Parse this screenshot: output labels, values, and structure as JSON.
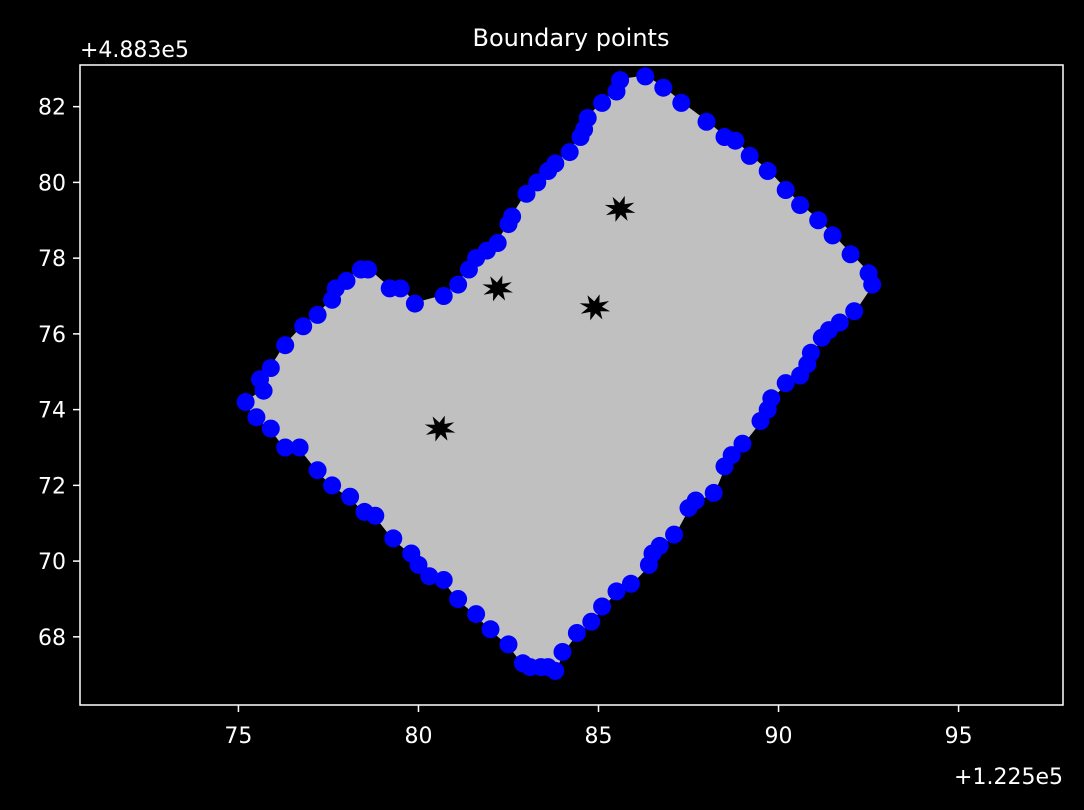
{
  "chart_data": {
    "type": "scatter",
    "title": "Boundary points",
    "xlabel": "",
    "ylabel": "",
    "x_offset_label": "+1.225e5",
    "y_offset_label": "+4.883e5",
    "xlim": [
      70.6,
      97.9
    ],
    "ylim": [
      66.2,
      83.1
    ],
    "xticks": [
      75,
      80,
      85,
      90,
      95
    ],
    "xtick_labels": [
      "75",
      "80",
      "85",
      "90",
      "95"
    ],
    "yticks": [
      68,
      70,
      72,
      74,
      76,
      78,
      80,
      82
    ],
    "ytick_labels": [
      "68",
      "70",
      "72",
      "74",
      "76",
      "78",
      "80",
      "82"
    ],
    "grid": false,
    "colors": {
      "background": "#000000",
      "fill": "#c0c0c0",
      "points": "#0000ff",
      "axes": "#ffffff"
    },
    "holes": [
      {
        "x": 85.6,
        "y": 79.3
      },
      {
        "x": 82.2,
        "y": 77.2
      },
      {
        "x": 84.9,
        "y": 76.7
      },
      {
        "x": 80.6,
        "y": 73.5
      }
    ],
    "series": [
      {
        "points": [
          [
            85.6,
            82.7
          ],
          [
            86.3,
            82.8
          ],
          [
            86.8,
            82.5
          ],
          [
            87.3,
            82.1
          ],
          [
            88.0,
            81.6
          ],
          [
            88.5,
            81.2
          ],
          [
            88.8,
            81.1
          ],
          [
            89.2,
            80.7
          ],
          [
            89.7,
            80.3
          ],
          [
            90.2,
            79.8
          ],
          [
            90.6,
            79.4
          ],
          [
            91.1,
            79.0
          ],
          [
            91.5,
            78.6
          ],
          [
            92.0,
            78.1
          ],
          [
            92.5,
            77.6
          ],
          [
            92.6,
            77.3
          ],
          [
            92.1,
            76.6
          ],
          [
            91.7,
            76.3
          ],
          [
            91.4,
            76.1
          ],
          [
            91.2,
            75.9
          ],
          [
            90.9,
            75.5
          ],
          [
            90.8,
            75.2
          ],
          [
            90.6,
            74.9
          ],
          [
            90.2,
            74.7
          ],
          [
            89.8,
            74.3
          ],
          [
            89.7,
            74.0
          ],
          [
            89.5,
            73.7
          ],
          [
            89.0,
            73.1
          ],
          [
            88.7,
            72.8
          ],
          [
            88.5,
            72.5
          ],
          [
            88.2,
            71.8
          ],
          [
            87.7,
            71.6
          ],
          [
            87.5,
            71.4
          ],
          [
            87.1,
            70.7
          ],
          [
            86.7,
            70.4
          ],
          [
            86.5,
            70.2
          ],
          [
            86.4,
            69.9
          ],
          [
            85.9,
            69.4
          ],
          [
            85.5,
            69.2
          ],
          [
            85.1,
            68.8
          ],
          [
            84.8,
            68.4
          ],
          [
            84.4,
            68.1
          ],
          [
            84.0,
            67.6
          ],
          [
            83.8,
            67.1
          ],
          [
            83.6,
            67.2
          ],
          [
            83.4,
            67.2
          ],
          [
            83.1,
            67.2
          ],
          [
            82.9,
            67.3
          ],
          [
            82.5,
            67.8
          ],
          [
            82.0,
            68.2
          ],
          [
            81.6,
            68.6
          ],
          [
            81.1,
            69.0
          ],
          [
            80.7,
            69.5
          ],
          [
            80.3,
            69.6
          ],
          [
            80.0,
            69.9
          ],
          [
            79.8,
            70.2
          ],
          [
            79.3,
            70.6
          ],
          [
            78.8,
            71.2
          ],
          [
            78.5,
            71.3
          ],
          [
            78.1,
            71.7
          ],
          [
            77.6,
            72.0
          ],
          [
            77.2,
            72.4
          ],
          [
            76.7,
            73.0
          ],
          [
            76.3,
            73.0
          ],
          [
            75.9,
            73.5
          ],
          [
            75.5,
            73.8
          ],
          [
            75.2,
            74.2
          ],
          [
            75.7,
            74.5
          ],
          [
            75.6,
            74.8
          ],
          [
            75.9,
            75.1
          ],
          [
            76.3,
            75.7
          ],
          [
            76.8,
            76.2
          ],
          [
            77.2,
            76.5
          ],
          [
            77.6,
            76.9
          ],
          [
            77.7,
            77.2
          ],
          [
            78.0,
            77.4
          ],
          [
            78.4,
            77.7
          ],
          [
            78.6,
            77.7
          ],
          [
            79.2,
            77.2
          ],
          [
            79.5,
            77.2
          ],
          [
            79.9,
            76.8
          ],
          [
            80.7,
            77.0
          ],
          [
            81.1,
            77.3
          ],
          [
            81.4,
            77.7
          ],
          [
            81.6,
            78.0
          ],
          [
            81.9,
            78.2
          ],
          [
            82.2,
            78.4
          ],
          [
            82.5,
            78.9
          ],
          [
            82.6,
            79.1
          ],
          [
            83.0,
            79.7
          ],
          [
            83.3,
            80.0
          ],
          [
            83.6,
            80.3
          ],
          [
            83.8,
            80.5
          ],
          [
            84.2,
            80.8
          ],
          [
            84.5,
            81.2
          ],
          [
            84.6,
            81.4
          ],
          [
            84.7,
            81.7
          ],
          [
            85.1,
            82.1
          ],
          [
            85.5,
            82.4
          ]
        ]
      }
    ]
  }
}
